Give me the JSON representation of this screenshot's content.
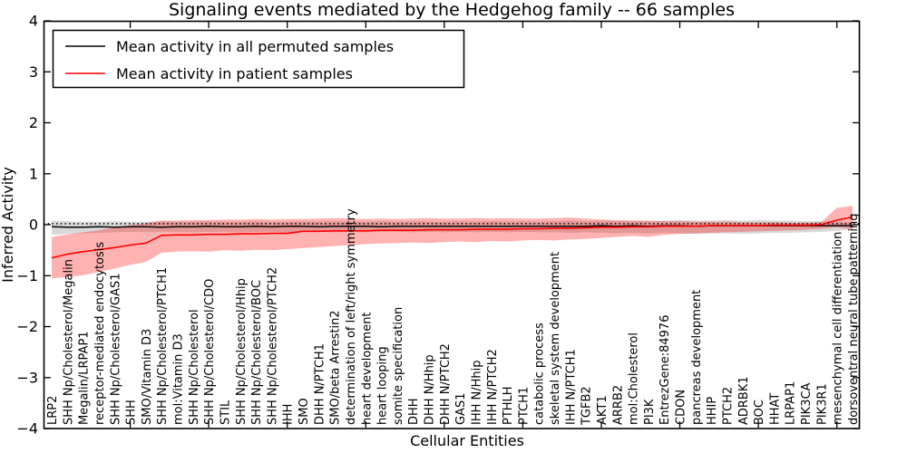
{
  "chart_data": {
    "type": "line",
    "title": "Signaling events mediated by the Hedgehog family -- 66 samples",
    "xlabel": "Cellular Entities",
    "ylabel": "Inferred Activity",
    "ylim": [
      -4,
      4
    ],
    "yticks": [
      -4,
      -3,
      -2,
      -1,
      0,
      1,
      2,
      3,
      4
    ],
    "grid": false,
    "legend_position": "upper left",
    "reference_dotted_line_y": 0.02,
    "legend": [
      {
        "label": "Mean activity in all permuted samples",
        "color": "#000000"
      },
      {
        "label": "Mean activity in patient samples",
        "color": "#ff0000"
      }
    ],
    "categories": [
      "LRP2",
      "SHH Np/Cholesterol/Megalin",
      "Megalin/LRPAP1",
      "receptor-mediated endocytosis",
      "SHH Np/Cholesterol/GAS1",
      "SHH",
      "SMO/Vitamin D3",
      "SHH Np/Cholesterol/PTCH1",
      "mol:Vitamin D3",
      "SHH Np/Cholesterol",
      "SHH Np/Cholesterol/CDO",
      "STIL",
      "SHH Np/Cholesterol/Hhip",
      "SHH Np/Cholesterol/BOC",
      "SHH Np/Cholesterol/PTCH2",
      "IHH",
      "SMO",
      "DHH N/PTCH1",
      "SMO/beta Arrestin2",
      "determination of left/right symmetry",
      "heart development",
      "heart looping",
      "somite specification",
      "DHH",
      "DHH N/Hhip",
      "DHH N/PTCH2",
      "GAS1",
      "IHH N/Hhip",
      "IHH N/PTCH2",
      "PTHLH",
      "PTCH1",
      "catabolic process",
      "skeletal system development",
      "IHH N/PTCH1",
      "TGFB2",
      "AKT1",
      "ARRB2",
      "mol:Cholesterol",
      "PI3K",
      "EntrezGene:84976",
      "CDON",
      "pancreas development",
      "HHIP",
      "PTCH2",
      "ADRBK1",
      "BOC",
      "HHAT",
      "LRPAP1",
      "PIK3CA",
      "PIK3R1",
      "mesenchymal cell differentiation",
      "dorsoventral neural tube patterning"
    ],
    "series": [
      {
        "name": "Mean activity in all permuted samples",
        "color": "#000000",
        "band_color": "#000000",
        "band_opacity": 0.15,
        "values": [
          -0.04,
          -0.05,
          -0.05,
          -0.04,
          -0.05,
          -0.04,
          -0.04,
          -0.05,
          -0.04,
          -0.04,
          -0.03,
          -0.04,
          -0.04,
          -0.03,
          -0.04,
          -0.03,
          -0.03,
          -0.04,
          -0.03,
          -0.03,
          -0.03,
          -0.04,
          -0.03,
          -0.03,
          -0.03,
          -0.03,
          -0.03,
          -0.03,
          -0.03,
          -0.03,
          -0.03,
          -0.03,
          -0.03,
          -0.03,
          -0.03,
          -0.02,
          -0.03,
          -0.02,
          -0.03,
          -0.02,
          -0.02,
          -0.03,
          -0.02,
          -0.02,
          -0.02,
          -0.02,
          -0.02,
          -0.02,
          -0.02,
          -0.02,
          -0.02,
          -0.02
        ],
        "band_upper": [
          0.08,
          0.07,
          0.06,
          0.06,
          0.07,
          0.06,
          0.06,
          0.07,
          0.06,
          0.06,
          0.07,
          0.06,
          0.06,
          0.07,
          0.06,
          0.06,
          0.07,
          0.06,
          0.07,
          0.06,
          0.06,
          0.07,
          0.06,
          0.07,
          0.06,
          0.06,
          0.07,
          0.06,
          0.07,
          0.06,
          0.07,
          0.06,
          0.07,
          0.08,
          0.07,
          0.08,
          0.07,
          0.08,
          0.07,
          0.08,
          0.09,
          0.08,
          0.08,
          0.09,
          0.08,
          0.09,
          0.08,
          0.08,
          0.07,
          0.07,
          0.06,
          0.05
        ],
        "band_lower": [
          -0.2,
          -0.18,
          -0.17,
          -0.16,
          -0.15,
          -0.14,
          -0.15,
          -0.14,
          -0.14,
          -0.15,
          -0.14,
          -0.14,
          -0.15,
          -0.14,
          -0.14,
          -0.15,
          -0.14,
          -0.14,
          -0.15,
          -0.14,
          -0.15,
          -0.14,
          -0.14,
          -0.15,
          -0.14,
          -0.15,
          -0.14,
          -0.15,
          -0.14,
          -0.15,
          -0.14,
          -0.15,
          -0.15,
          -0.16,
          -0.15,
          -0.16,
          -0.17,
          -0.16,
          -0.17,
          -0.16,
          -0.17,
          -0.18,
          -0.17,
          -0.17,
          -0.18,
          -0.17,
          -0.16,
          -0.16,
          -0.15,
          -0.14,
          -0.12,
          -0.1
        ]
      },
      {
        "name": "Mean activity in patient samples",
        "color": "#ff0000",
        "band_color": "#ff0000",
        "band_opacity": 0.3,
        "values": [
          -0.65,
          -0.58,
          -0.53,
          -0.49,
          -0.45,
          -0.4,
          -0.36,
          -0.21,
          -0.2,
          -0.2,
          -0.19,
          -0.19,
          -0.18,
          -0.18,
          -0.17,
          -0.17,
          -0.13,
          -0.13,
          -0.12,
          -0.12,
          -0.12,
          -0.11,
          -0.11,
          -0.11,
          -0.1,
          -0.1,
          -0.1,
          -0.09,
          -0.09,
          -0.09,
          -0.08,
          -0.08,
          -0.07,
          -0.07,
          -0.06,
          -0.05,
          -0.05,
          -0.04,
          -0.04,
          -0.03,
          -0.03,
          -0.03,
          -0.02,
          -0.02,
          -0.02,
          -0.02,
          -0.01,
          -0.01,
          -0.01,
          0.0,
          0.09,
          0.15
        ],
        "band_upper": [
          -0.24,
          -0.19,
          -0.15,
          -0.11,
          -0.06,
          -0.01,
          0.03,
          0.08,
          0.08,
          0.09,
          0.09,
          0.1,
          0.1,
          0.11,
          0.1,
          0.11,
          0.11,
          0.12,
          0.13,
          0.12,
          0.11,
          0.12,
          0.11,
          0.12,
          0.13,
          0.12,
          0.12,
          0.13,
          0.12,
          0.13,
          0.12,
          0.12,
          0.13,
          0.14,
          0.12,
          0.1,
          0.09,
          0.08,
          0.08,
          0.07,
          0.07,
          0.06,
          0.06,
          0.06,
          0.05,
          0.05,
          0.05,
          0.04,
          0.04,
          0.05,
          0.33,
          0.37
        ],
        "band_lower": [
          -1.05,
          -1.03,
          -0.99,
          -0.93,
          -0.86,
          -0.79,
          -0.73,
          -0.55,
          -0.53,
          -0.52,
          -0.53,
          -0.5,
          -0.51,
          -0.49,
          -0.5,
          -0.48,
          -0.46,
          -0.44,
          -0.42,
          -0.4,
          -0.38,
          -0.37,
          -0.36,
          -0.35,
          -0.36,
          -0.34,
          -0.33,
          -0.34,
          -0.32,
          -0.33,
          -0.31,
          -0.3,
          -0.31,
          -0.29,
          -0.28,
          -0.26,
          -0.24,
          -0.22,
          -0.24,
          -0.2,
          -0.18,
          -0.17,
          -0.16,
          -0.15,
          -0.14,
          -0.13,
          -0.12,
          -0.11,
          -0.1,
          -0.08,
          -0.05,
          -0.09
        ]
      }
    ],
    "x_major_tick_category_indices": [
      5,
      10,
      15,
      20,
      25,
      30,
      35,
      40,
      45,
      50
    ]
  }
}
